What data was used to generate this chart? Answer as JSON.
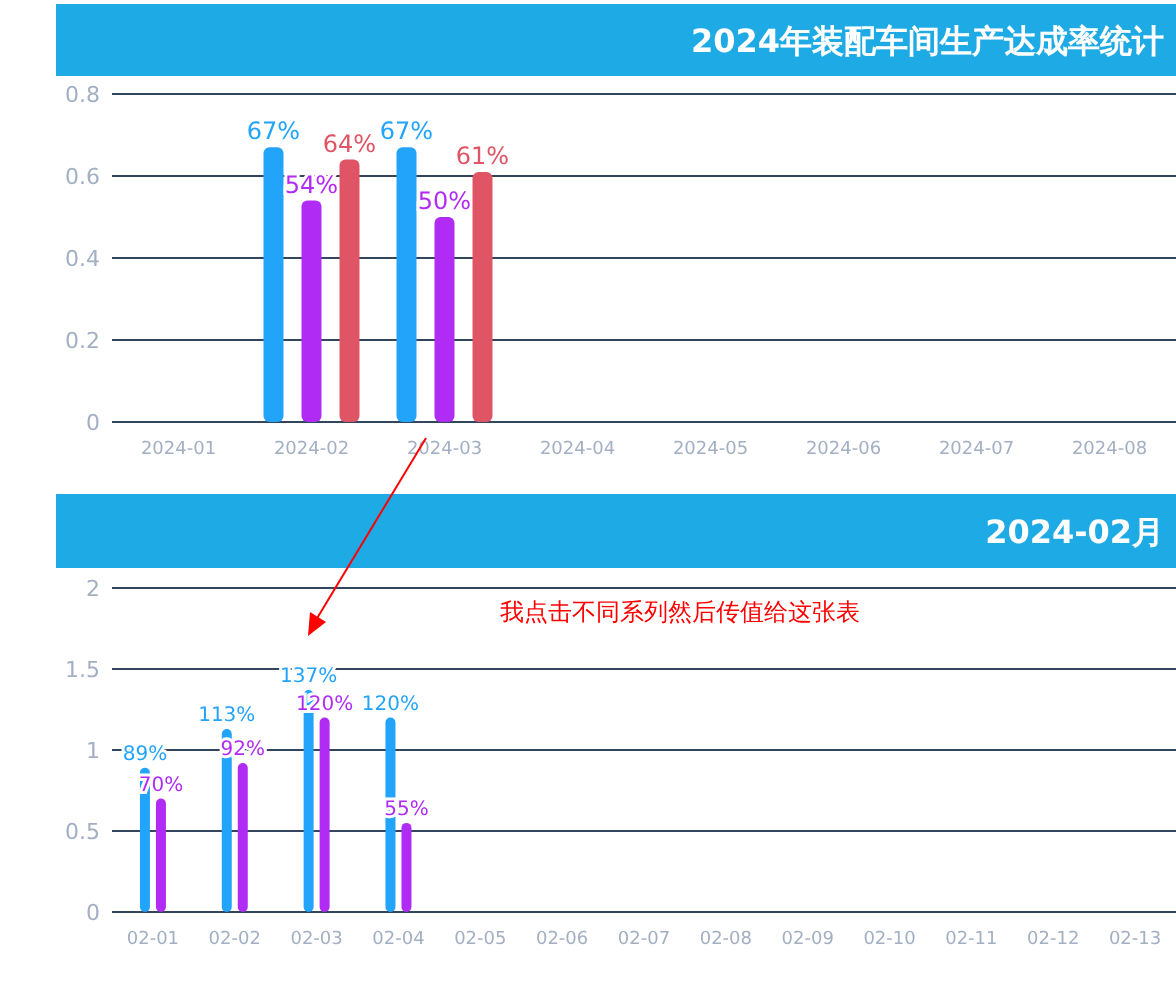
{
  "chart_data": [
    {
      "type": "bar",
      "title": "2024年装配车间生产达成率统计",
      "categories": [
        "2024-01",
        "2024-02",
        "2024-03",
        "2024-04",
        "2024-05",
        "2024-06",
        "2024-07",
        "2024-08"
      ],
      "series": [
        {
          "color": "#22a4fb",
          "values": [
            null,
            0.67,
            0.67,
            null,
            null,
            null,
            null,
            null
          ],
          "value_labels": [
            null,
            "67%",
            "67%",
            null,
            null,
            null,
            null,
            null
          ]
        },
        {
          "color": "#b02cf5",
          "values": [
            null,
            0.54,
            0.5,
            null,
            null,
            null,
            null,
            null
          ],
          "value_labels": [
            null,
            "54%",
            "50%",
            null,
            null,
            null,
            null,
            null
          ]
        },
        {
          "color": "#e05565",
          "values": [
            null,
            0.64,
            0.61,
            null,
            null,
            null,
            null,
            null
          ],
          "value_labels": [
            null,
            "64%",
            "61%",
            null,
            null,
            null,
            null,
            null
          ]
        }
      ],
      "ylim": [
        0,
        0.8
      ],
      "yticks": [
        0,
        0.2,
        0.4,
        0.6,
        0.8
      ],
      "grid": "y"
    },
    {
      "type": "bar",
      "title": "2024-02月",
      "categories": [
        "02-01",
        "02-02",
        "02-03",
        "02-04",
        "02-05",
        "02-06",
        "02-07",
        "02-08",
        "02-09",
        "02-10",
        "02-11",
        "02-12",
        "02-13"
      ],
      "series": [
        {
          "color": "#22a4fb",
          "values": [
            0.89,
            1.13,
            1.37,
            1.2,
            null,
            null,
            null,
            null,
            null,
            null,
            null,
            null,
            null
          ],
          "value_labels": [
            "89%",
            "113%",
            "137%",
            "120%",
            null,
            null,
            null,
            null,
            null,
            null,
            null,
            null,
            null
          ]
        },
        {
          "color": "#b02cf5",
          "values": [
            0.7,
            0.92,
            1.2,
            0.55,
            null,
            null,
            null,
            null,
            null,
            null,
            null,
            null,
            null
          ],
          "value_labels": [
            "70%",
            "92%",
            "120%",
            "55%",
            null,
            null,
            null,
            null,
            null,
            null,
            null,
            null,
            null
          ]
        }
      ],
      "ylim": [
        0,
        2
      ],
      "yticks": [
        0,
        0.5,
        1,
        1.5,
        2
      ],
      "grid": "y",
      "annotations": [
        "我点击不同系列然后传值给这张表"
      ]
    }
  ]
}
